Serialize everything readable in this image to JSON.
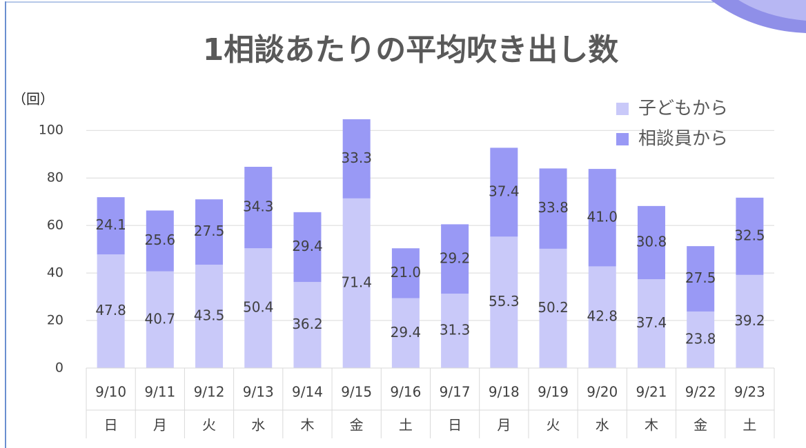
{
  "chart_data": {
    "type": "stacked_bar",
    "title": "1相談あたりの平均吹き出し数",
    "y_label": "（回）",
    "categories": [
      "9/10",
      "9/11",
      "9/12",
      "9/13",
      "9/14",
      "9/15",
      "9/16",
      "9/17",
      "9/18",
      "9/19",
      "9/20",
      "9/21",
      "9/22",
      "9/23"
    ],
    "weekdays": [
      "日",
      "月",
      "火",
      "水",
      "木",
      "金",
      "土",
      "日",
      "月",
      "火",
      "水",
      "木",
      "金",
      "土"
    ],
    "series": [
      {
        "name": "子どもから",
        "color": "#c9c9f9",
        "values": [
          47.8,
          40.7,
          43.5,
          50.4,
          36.2,
          71.4,
          29.4,
          31.3,
          55.3,
          50.2,
          42.8,
          37.4,
          23.8,
          39.2
        ]
      },
      {
        "name": "相談員から",
        "color": "#9999f5",
        "values": [
          24.1,
          25.6,
          27.5,
          34.3,
          29.4,
          33.3,
          21.0,
          29.2,
          37.4,
          33.8,
          41.0,
          30.8,
          27.5,
          32.5
        ],
        "value_labels": [
          "24.1",
          "25.6",
          "27.5",
          "34.3",
          "29.4",
          "33.3",
          "21.0",
          "29.2",
          "37.4",
          "33.8",
          "41.0",
          "30.8",
          "27.5",
          "32.5"
        ]
      }
    ],
    "ylim": [
      0,
      105
    ],
    "yticks": [
      0,
      20,
      40,
      60,
      80,
      100
    ],
    "grid": true,
    "legend": "top-right"
  }
}
